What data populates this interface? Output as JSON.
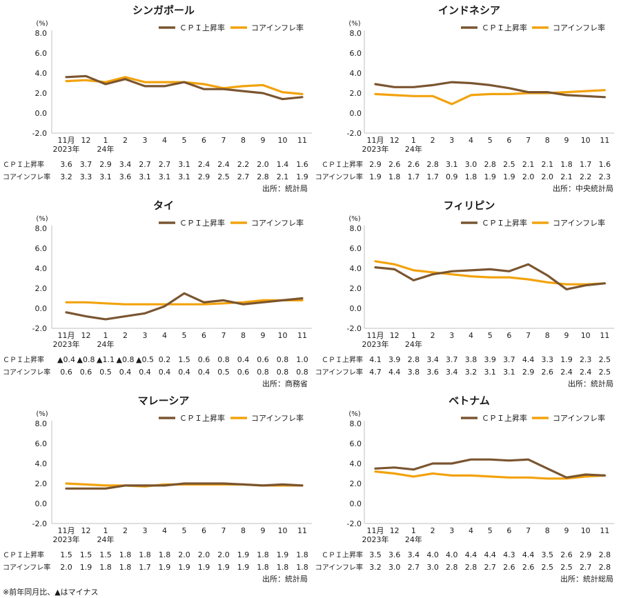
{
  "colors": {
    "cpi": "#7a5530",
    "core": "#f2a20c",
    "axis": "#bfbfbf",
    "text": "#1a1a1a"
  },
  "legend": {
    "cpi": "ＣＰＩ上昇率",
    "core": "コアインフレ率"
  },
  "row_labels": {
    "cpi": "ＣＰＩ上昇率",
    "core": "コアインフレ率"
  },
  "footnote": "※前年同月比、▲はマイナス",
  "chart_data": [
    {
      "type": "line",
      "title": "シンガポール",
      "ylabel": "(%)",
      "ylim": [
        -2.0,
        8.0
      ],
      "yticks": [
        "8.0",
        "6.0",
        "4.0",
        "2.0",
        "0.0",
        "-2.0"
      ],
      "x": [
        "11月",
        "12",
        "1",
        "2",
        "3",
        "4",
        "5",
        "6",
        "7",
        "8",
        "9",
        "10",
        "11"
      ],
      "year_labels": [
        "2023年",
        "24年"
      ],
      "series": [
        {
          "name": "ＣＰＩ上昇率",
          "values": [
            3.6,
            3.7,
            2.9,
            3.4,
            2.7,
            2.7,
            3.1,
            2.4,
            2.4,
            2.2,
            2.0,
            1.4,
            1.6
          ],
          "labels": [
            "3.6",
            "3.7",
            "2.9",
            "3.4",
            "2.7",
            "2.7",
            "3.1",
            "2.4",
            "2.4",
            "2.2",
            "2.0",
            "1.4",
            "1.6"
          ]
        },
        {
          "name": "コアインフレ率",
          "values": [
            3.2,
            3.3,
            3.1,
            3.6,
            3.1,
            3.1,
            3.1,
            2.9,
            2.5,
            2.7,
            2.8,
            2.1,
            1.9
          ],
          "labels": [
            "3.2",
            "3.3",
            "3.1",
            "3.6",
            "3.1",
            "3.1",
            "3.1",
            "2.9",
            "2.5",
            "2.7",
            "2.8",
            "2.1",
            "1.9"
          ]
        }
      ],
      "source": "出所：統計局"
    },
    {
      "type": "line",
      "title": "インドネシア",
      "ylabel": "(%)",
      "ylim": [
        -2.0,
        8.0
      ],
      "yticks": [
        "8.0",
        "6.0",
        "4.0",
        "2.0",
        "0.0",
        "-2.0"
      ],
      "x": [
        "11月",
        "12",
        "1",
        "2",
        "3",
        "4",
        "5",
        "6",
        "7",
        "8",
        "9",
        "10",
        "11"
      ],
      "year_labels": [
        "2023年",
        "24年"
      ],
      "series": [
        {
          "name": "ＣＰＩ上昇率",
          "values": [
            2.9,
            2.6,
            2.6,
            2.8,
            3.1,
            3.0,
            2.8,
            2.5,
            2.1,
            2.1,
            1.8,
            1.7,
            1.6
          ],
          "labels": [
            "2.9",
            "2.6",
            "2.6",
            "2.8",
            "3.1",
            "3.0",
            "2.8",
            "2.5",
            "2.1",
            "2.1",
            "1.8",
            "1.7",
            "1.6"
          ]
        },
        {
          "name": "コアインフレ率",
          "values": [
            1.9,
            1.8,
            1.7,
            1.7,
            0.9,
            1.8,
            1.9,
            1.9,
            2.0,
            2.0,
            2.1,
            2.2,
            2.3
          ],
          "labels": [
            "1.9",
            "1.8",
            "1.7",
            "1.7",
            "0.9",
            "1.8",
            "1.9",
            "1.9",
            "2.0",
            "2.0",
            "2.1",
            "2.2",
            "2.3"
          ]
        }
      ],
      "source": "出所：中央統計局"
    },
    {
      "type": "line",
      "title": "タイ",
      "ylabel": "(%)",
      "ylim": [
        -2.0,
        8.0
      ],
      "yticks": [
        "8.0",
        "6.0",
        "4.0",
        "2.0",
        "0.0",
        "-2.0"
      ],
      "x": [
        "11月",
        "12",
        "1",
        "2",
        "3",
        "4",
        "5",
        "6",
        "7",
        "8",
        "9",
        "10",
        "11"
      ],
      "year_labels": [
        "2023年",
        "24年"
      ],
      "series": [
        {
          "name": "ＣＰＩ上昇率",
          "values": [
            -0.4,
            -0.8,
            -1.1,
            -0.8,
            -0.5,
            0.2,
            1.5,
            0.6,
            0.8,
            0.4,
            0.6,
            0.8,
            1.0
          ],
          "labels": [
            "▲0.4",
            "▲0.8",
            "▲1.1",
            "▲0.8",
            "▲0.5",
            "0.2",
            "1.5",
            "0.6",
            "0.8",
            "0.4",
            "0.6",
            "0.8",
            "1.0"
          ]
        },
        {
          "name": "コアインフレ率",
          "values": [
            0.6,
            0.6,
            0.5,
            0.4,
            0.4,
            0.4,
            0.4,
            0.4,
            0.5,
            0.6,
            0.8,
            0.8,
            0.8
          ],
          "labels": [
            "0.6",
            "0.6",
            "0.5",
            "0.4",
            "0.4",
            "0.4",
            "0.4",
            "0.4",
            "0.5",
            "0.6",
            "0.8",
            "0.8",
            "0.8"
          ]
        }
      ],
      "source": "出所：商務省"
    },
    {
      "type": "line",
      "title": "フィリピン",
      "ylabel": "(%)",
      "ylim": [
        -2.0,
        8.0
      ],
      "yticks": [
        "8.0",
        "6.0",
        "4.0",
        "2.0",
        "0.0",
        "-2.0"
      ],
      "x": [
        "11月",
        "12",
        "1",
        "2",
        "3",
        "4",
        "5",
        "6",
        "7",
        "8",
        "9",
        "10",
        "11"
      ],
      "year_labels": [
        "2023年",
        "24年"
      ],
      "series": [
        {
          "name": "ＣＰＩ上昇率",
          "values": [
            4.1,
            3.9,
            2.8,
            3.4,
            3.7,
            3.8,
            3.9,
            3.7,
            4.4,
            3.3,
            1.9,
            2.3,
            2.5
          ],
          "labels": [
            "4.1",
            "3.9",
            "2.8",
            "3.4",
            "3.7",
            "3.8",
            "3.9",
            "3.7",
            "4.4",
            "3.3",
            "1.9",
            "2.3",
            "2.5"
          ]
        },
        {
          "name": "コアインフレ率",
          "values": [
            4.7,
            4.4,
            3.8,
            3.6,
            3.4,
            3.2,
            3.1,
            3.1,
            2.9,
            2.6,
            2.4,
            2.4,
            2.5
          ],
          "labels": [
            "4.7",
            "4.4",
            "3.8",
            "3.6",
            "3.4",
            "3.2",
            "3.1",
            "3.1",
            "2.9",
            "2.6",
            "2.4",
            "2.4",
            "2.5"
          ]
        }
      ],
      "source": "出所：統計局"
    },
    {
      "type": "line",
      "title": "マレーシア",
      "ylabel": "(%)",
      "ylim": [
        -2.0,
        8.0
      ],
      "yticks": [
        "8.0",
        "6.0",
        "4.0",
        "2.0",
        "0.0",
        "-2.0"
      ],
      "x": [
        "11月",
        "12",
        "1",
        "2",
        "3",
        "4",
        "5",
        "6",
        "7",
        "8",
        "9",
        "10",
        "11"
      ],
      "year_labels": [
        "2023年",
        "24年"
      ],
      "series": [
        {
          "name": "ＣＰＩ上昇率",
          "values": [
            1.5,
            1.5,
            1.5,
            1.8,
            1.8,
            1.8,
            2.0,
            2.0,
            2.0,
            1.9,
            1.8,
            1.9,
            1.8
          ],
          "labels": [
            "1.5",
            "1.5",
            "1.5",
            "1.8",
            "1.8",
            "1.8",
            "2.0",
            "2.0",
            "2.0",
            "1.9",
            "1.8",
            "1.9",
            "1.8"
          ]
        },
        {
          "name": "コアインフレ率",
          "values": [
            2.0,
            1.9,
            1.8,
            1.8,
            1.7,
            1.9,
            1.9,
            1.9,
            1.9,
            1.9,
            1.8,
            1.8,
            1.8
          ],
          "labels": [
            "2.0",
            "1.9",
            "1.8",
            "1.8",
            "1.7",
            "1.9",
            "1.9",
            "1.9",
            "1.9",
            "1.9",
            "1.8",
            "1.8",
            "1.8"
          ]
        }
      ],
      "source": "出所：統計局"
    },
    {
      "type": "line",
      "title": "ベトナム",
      "ylabel": "(%)",
      "ylim": [
        -2.0,
        8.0
      ],
      "yticks": [
        "8.0",
        "6.0",
        "4.0",
        "2.0",
        "0.0",
        "-2.0"
      ],
      "x": [
        "11月",
        "12",
        "1",
        "2",
        "3",
        "4",
        "5",
        "6",
        "7",
        "8",
        "9",
        "10",
        "11"
      ],
      "year_labels": [
        "2023年",
        "24年"
      ],
      "series": [
        {
          "name": "ＣＰＩ上昇率",
          "values": [
            3.5,
            3.6,
            3.4,
            4.0,
            4.0,
            4.4,
            4.4,
            4.3,
            4.4,
            3.5,
            2.6,
            2.9,
            2.8
          ],
          "labels": [
            "3.5",
            "3.6",
            "3.4",
            "4.0",
            "4.0",
            "4.4",
            "4.4",
            "4.3",
            "4.4",
            "3.5",
            "2.6",
            "2.9",
            "2.8"
          ]
        },
        {
          "name": "コアインフレ率",
          "values": [
            3.2,
            3.0,
            2.7,
            3.0,
            2.8,
            2.8,
            2.7,
            2.6,
            2.6,
            2.5,
            2.5,
            2.7,
            2.8
          ],
          "labels": [
            "3.2",
            "3.0",
            "2.7",
            "3.0",
            "2.8",
            "2.8",
            "2.7",
            "2.6",
            "2.6",
            "2.5",
            "2.5",
            "2.7",
            "2.8"
          ]
        }
      ],
      "source": "出所：統計総局"
    }
  ]
}
